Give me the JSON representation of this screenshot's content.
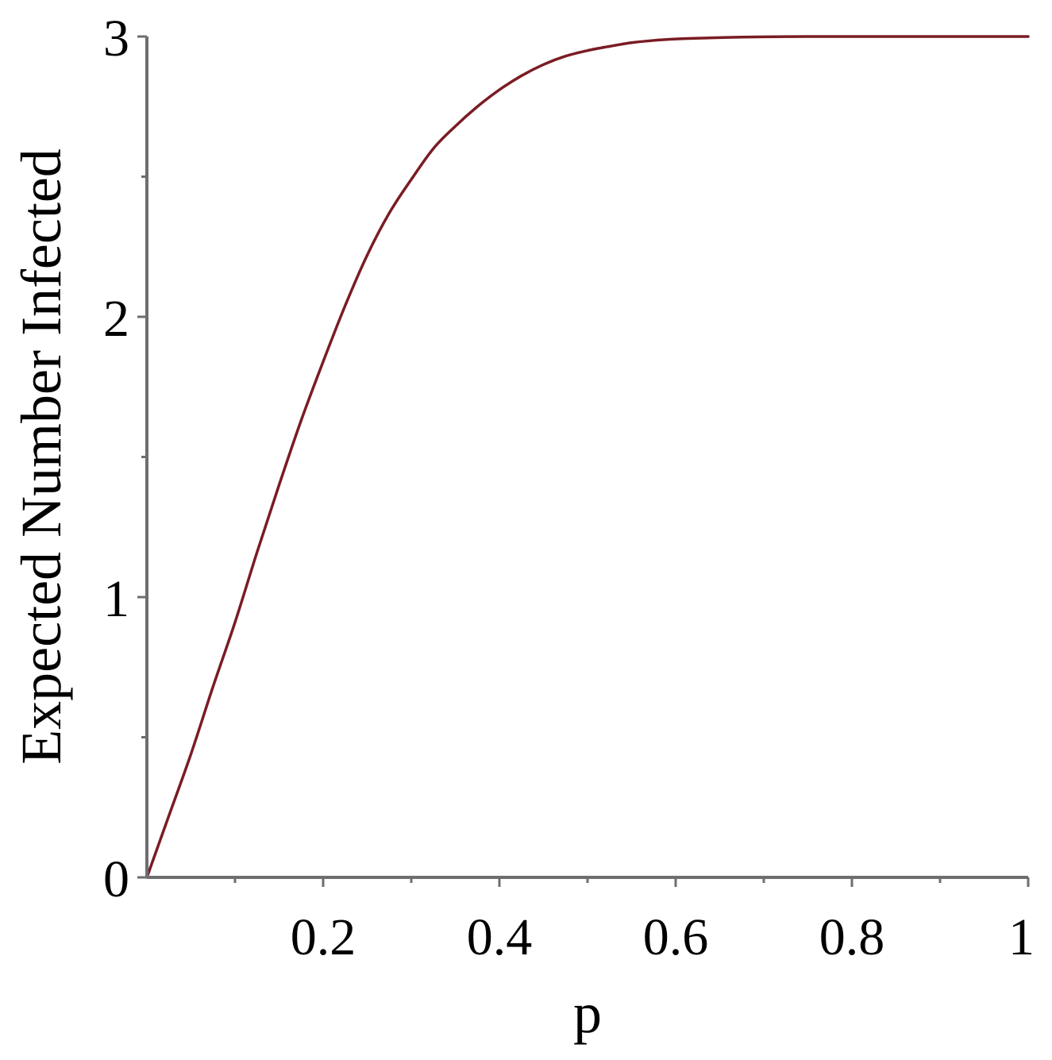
{
  "chart_data": {
    "type": "line",
    "title": "",
    "xlabel": "p",
    "ylabel": "Expected Number Infected",
    "xlim": [
      0,
      1
    ],
    "ylim": [
      0,
      3
    ],
    "x_ticks": [
      {
        "value": 0.2,
        "label": "0.2"
      },
      {
        "value": 0.4,
        "label": "0.4"
      },
      {
        "value": 0.6,
        "label": "0.6"
      },
      {
        "value": 0.8,
        "label": "0.8"
      },
      {
        "value": 1,
        "label": "1"
      }
    ],
    "x_minor_ticks": [
      0.1,
      0.3,
      0.5,
      0.7,
      0.9
    ],
    "y_ticks": [
      {
        "value": 0,
        "label": "0"
      },
      {
        "value": 1,
        "label": "1"
      },
      {
        "value": 2,
        "label": "2"
      },
      {
        "value": 3,
        "label": "3"
      }
    ],
    "y_minor_ticks": [
      0.5,
      1.5,
      2.5
    ],
    "grid": false,
    "legend": "none",
    "series": [
      {
        "color": "#7a1c24",
        "x": [
          0,
          0.025,
          0.05,
          0.075,
          0.1,
          0.125,
          0.15,
          0.175,
          0.2,
          0.225,
          0.25,
          0.275,
          0.3,
          0.325,
          0.35,
          0.375,
          0.4,
          0.425,
          0.45,
          0.475,
          0.5,
          0.525,
          0.55,
          0.575,
          0.6,
          0.625,
          0.65,
          0.675,
          0.7,
          0.725,
          0.75,
          0.8,
          0.85,
          0.9,
          0.95,
          1.0
        ],
        "y": [
          0,
          0.22,
          0.44,
          0.68,
          0.91,
          1.16,
          1.4,
          1.63,
          1.84,
          2.04,
          2.22,
          2.37,
          2.49,
          2.6,
          2.68,
          2.75,
          2.81,
          2.86,
          2.9,
          2.93,
          2.95,
          2.965,
          2.978,
          2.986,
          2.991,
          2.994,
          2.996,
          2.998,
          2.999,
          2.9995,
          3.0,
          3.0,
          3.0,
          3.0,
          3.0,
          3.0
        ]
      }
    ]
  }
}
